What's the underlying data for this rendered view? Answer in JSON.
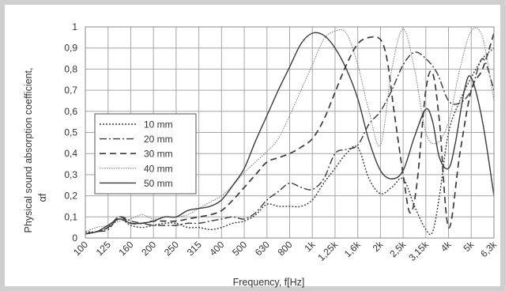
{
  "chart_data": {
    "type": "line",
    "title": "",
    "xlabel": "Frequency, f[Hz]",
    "ylabel_line1": "Physical sound absorption coefficient,",
    "ylabel_line2": "αf",
    "categories": [
      "100",
      "125",
      "160",
      "200",
      "250",
      "315",
      "400",
      "500",
      "630",
      "800",
      "1k",
      "1,25k",
      "1,6k",
      "2k",
      "2,5k",
      "3,15k",
      "4k",
      "5k",
      "6,3k"
    ],
    "yticks": [
      "0",
      "0,1",
      "0,2",
      "0,3",
      "0,4",
      "0,5",
      "0,6",
      "0,7",
      "0,8",
      "0,9",
      "1"
    ],
    "ylim": [
      0,
      1
    ],
    "grid": true,
    "legend_position": "middle-left",
    "series": [
      {
        "name": "10 mm",
        "dash": "2,2",
        "width": 1.4,
        "x": [
          0,
          0.5,
          1,
          1.5,
          2,
          2.5,
          3,
          3.5,
          4,
          4.5,
          5,
          5.5,
          6,
          6.5,
          7,
          7.5,
          8,
          8.5,
          9,
          9.5,
          10,
          10.5,
          11,
          11.5,
          12,
          12.5,
          13,
          13.5,
          14,
          14.5,
          15,
          15.3,
          15.6,
          16,
          16.5,
          17,
          17.5,
          18
        ],
        "values": [
          0.03,
          0.03,
          0.05,
          0.09,
          0.06,
          0.05,
          0.06,
          0.07,
          0.07,
          0.05,
          0.05,
          0.04,
          0.05,
          0.07,
          0.08,
          0.11,
          0.16,
          0.15,
          0.15,
          0.15,
          0.18,
          0.26,
          0.33,
          0.4,
          0.43,
          0.28,
          0.21,
          0.24,
          0.28,
          0.15,
          0.04,
          0.03,
          0.2,
          0.5,
          0.65,
          0.76,
          0.85,
          0.9
        ]
      },
      {
        "name": "20 mm",
        "dash": "9,3,2,3",
        "width": 1.4,
        "x": [
          0,
          0.5,
          1,
          1.5,
          2,
          2.5,
          3,
          3.5,
          4,
          4.5,
          5,
          5.5,
          6,
          6.5,
          7,
          7.5,
          8,
          8.5,
          9,
          9.5,
          10,
          10.5,
          11,
          11.5,
          12,
          12.5,
          13,
          13.5,
          14,
          14.5,
          15,
          15.5,
          16,
          16.5,
          17,
          17.5,
          18
        ],
        "values": [
          0.02,
          0.03,
          0.04,
          0.1,
          0.08,
          0.07,
          0.06,
          0.06,
          0.06,
          0.07,
          0.07,
          0.08,
          0.09,
          0.1,
          0.09,
          0.12,
          0.18,
          0.22,
          0.26,
          0.24,
          0.23,
          0.28,
          0.4,
          0.42,
          0.44,
          0.54,
          0.6,
          0.7,
          0.82,
          0.88,
          0.85,
          0.78,
          0.65,
          0.64,
          0.7,
          0.85,
          0.7
        ]
      },
      {
        "name": "30 mm",
        "dash": "8,5",
        "width": 1.7,
        "x": [
          0,
          0.5,
          1,
          1.5,
          2,
          2.5,
          3,
          3.5,
          4,
          4.5,
          5,
          5.5,
          6,
          6.5,
          7,
          7.5,
          8,
          8.5,
          9,
          9.5,
          10,
          10.5,
          11,
          11.5,
          12,
          12.5,
          13,
          13.3,
          13.6,
          14,
          14.3,
          14.6,
          15,
          15.3,
          15.6,
          16,
          16.5,
          17,
          17.5,
          18
        ],
        "values": [
          0.02,
          0.03,
          0.05,
          0.1,
          0.07,
          0.07,
          0.08,
          0.08,
          0.08,
          0.09,
          0.1,
          0.11,
          0.13,
          0.18,
          0.24,
          0.3,
          0.36,
          0.38,
          0.4,
          0.43,
          0.47,
          0.56,
          0.69,
          0.82,
          0.92,
          0.95,
          0.94,
          0.84,
          0.6,
          0.3,
          0.12,
          0.25,
          0.7,
          0.78,
          0.55,
          0.05,
          0.4,
          0.7,
          0.8,
          0.97
        ]
      },
      {
        "name": "40 mm",
        "dash": "1.5,1.5",
        "width": 1.0,
        "color": "#777777",
        "x": [
          0,
          0.5,
          1,
          1.5,
          2,
          2.5,
          3,
          3.5,
          4,
          4.5,
          5,
          5.5,
          6,
          6.5,
          7,
          7.5,
          8,
          8.5,
          9,
          9.5,
          10,
          10.5,
          11,
          11.5,
          12,
          12.5,
          13,
          13.5,
          14,
          14.5,
          15,
          15.5,
          16,
          16.5,
          17,
          17.5,
          18
        ],
        "values": [
          0.03,
          0.05,
          0.06,
          0.08,
          0.09,
          0.11,
          0.09,
          0.1,
          0.1,
          0.11,
          0.14,
          0.17,
          0.2,
          0.25,
          0.31,
          0.36,
          0.41,
          0.47,
          0.58,
          0.7,
          0.82,
          0.94,
          0.98,
          0.97,
          0.82,
          0.6,
          0.44,
          0.8,
          0.99,
          0.8,
          0.5,
          0.45,
          0.55,
          0.8,
          0.98,
          0.95,
          0.65
        ]
      },
      {
        "name": "50 mm",
        "dash": "",
        "width": 1.4,
        "x": [
          0,
          0.5,
          1,
          1.5,
          2,
          2.5,
          3,
          3.5,
          4,
          4.5,
          5,
          5.5,
          6,
          6.5,
          7,
          7.5,
          8,
          8.5,
          9,
          9.5,
          10,
          10.5,
          11,
          11.5,
          12,
          12.5,
          13,
          13.5,
          14,
          14.5,
          15,
          15.3,
          15.6,
          16,
          16.3,
          16.7,
          17,
          17.5,
          18
        ],
        "values": [
          0.02,
          0.03,
          0.06,
          0.09,
          0.07,
          0.07,
          0.08,
          0.1,
          0.1,
          0.13,
          0.14,
          0.15,
          0.18,
          0.25,
          0.33,
          0.46,
          0.58,
          0.7,
          0.81,
          0.92,
          0.97,
          0.96,
          0.9,
          0.8,
          0.66,
          0.46,
          0.32,
          0.28,
          0.32,
          0.48,
          0.61,
          0.55,
          0.38,
          0.33,
          0.45,
          0.7,
          0.76,
          0.55,
          0.2
        ]
      }
    ]
  }
}
